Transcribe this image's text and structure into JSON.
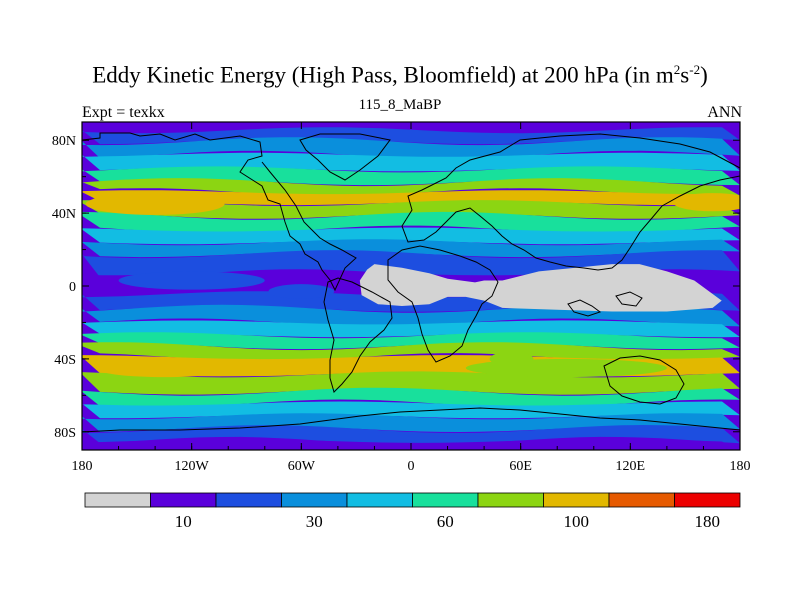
{
  "chart_data": {
    "type": "contour-map",
    "title": "Eddy Kinetic Energy (High Pass, Bloomfield) at 200 hPa (in m",
    "title_units_sup1": "2",
    "title_units_mid": "s",
    "title_units_sup2": "-2",
    "title_units_end": ")",
    "subtitle": "115_8_MaBP",
    "left_string": "Expt = texkx",
    "right_string": "ANN",
    "x_ticks": [
      {
        "value": -180,
        "label": "180"
      },
      {
        "value": -120,
        "label": "120W"
      },
      {
        "value": -60,
        "label": "60W"
      },
      {
        "value": 0,
        "label": "0"
      },
      {
        "value": 60,
        "label": "60E"
      },
      {
        "value": 120,
        "label": "120E"
      },
      {
        "value": 180,
        "label": "180"
      }
    ],
    "y_ticks": [
      {
        "value": 80,
        "label": "80N"
      },
      {
        "value": 40,
        "label": "40N"
      },
      {
        "value": 0,
        "label": "0"
      },
      {
        "value": -40,
        "label": "40S"
      },
      {
        "value": -80,
        "label": "80S"
      }
    ],
    "xlim": [
      -180,
      180
    ],
    "ylim": [
      -90,
      90
    ],
    "colorbar": {
      "colors": [
        "#d3d3d3",
        "#5a00db",
        "#1d4ee0",
        "#0a8fdc",
        "#12bde3",
        "#18e09c",
        "#8cd512",
        "#e2b800",
        "#e65a00",
        "#ec0000"
      ],
      "labels": [
        {
          "index": 1,
          "label": "10"
        },
        {
          "index": 3,
          "label": "30"
        },
        {
          "index": 5,
          "label": "60"
        },
        {
          "index": 7,
          "label": "100"
        },
        {
          "index": 9,
          "label": "180"
        }
      ]
    },
    "bands": [
      {
        "lat": 88,
        "level": 1
      },
      {
        "lat": 83,
        "level": 2
      },
      {
        "lat": 76,
        "level": 3
      },
      {
        "lat": 68,
        "level": 4
      },
      {
        "lat": 60,
        "level": 5
      },
      {
        "lat": 54,
        "level": 6
      },
      {
        "lat": 49,
        "level": 7
      },
      {
        "lat": 42,
        "level": 6
      },
      {
        "lat": 35,
        "level": 5
      },
      {
        "lat": 27,
        "level": 4
      },
      {
        "lat": 21,
        "level": 3
      },
      {
        "lat": 14,
        "level": 2
      },
      {
        "lat": 0,
        "level": 1
      },
      {
        "lat": -9,
        "level": 2
      },
      {
        "lat": -16,
        "level": 3
      },
      {
        "lat": -24,
        "level": 4
      },
      {
        "lat": -30,
        "level": 5
      },
      {
        "lat": -36,
        "level": 6
      },
      {
        "lat": -42,
        "level": 7
      },
      {
        "lat": -55,
        "level": 6
      },
      {
        "lat": -61,
        "level": 5
      },
      {
        "lat": -68,
        "level": 4
      },
      {
        "lat": -75,
        "level": 3
      },
      {
        "lat": -82,
        "level": 2
      },
      {
        "lat": -88,
        "level": 1
      }
    ],
    "low_region": [
      {
        "lon": -20,
        "lat": 12
      },
      {
        "lon": -5,
        "lat": 10
      },
      {
        "lon": 10,
        "lat": 7
      },
      {
        "lon": 20,
        "lat": 4
      },
      {
        "lon": 35,
        "lat": 2
      },
      {
        "lon": 40,
        "lat": 3
      },
      {
        "lon": 50,
        "lat": 3
      },
      {
        "lon": 70,
        "lat": 8
      },
      {
        "lon": 90,
        "lat": 10
      },
      {
        "lon": 110,
        "lat": 12
      },
      {
        "lon": 125,
        "lat": 12
      },
      {
        "lon": 140,
        "lat": 8
      },
      {
        "lon": 155,
        "lat": 3
      },
      {
        "lon": 170,
        "lat": -8
      },
      {
        "lon": 165,
        "lat": -12
      },
      {
        "lon": 140,
        "lat": -14
      },
      {
        "lon": 110,
        "lat": -14
      },
      {
        "lon": 80,
        "lat": -13
      },
      {
        "lon": 50,
        "lat": -12
      },
      {
        "lon": 40,
        "lat": -8
      },
      {
        "lon": 30,
        "lat": -6
      },
      {
        "lon": 20,
        "lat": -6
      },
      {
        "lon": 10,
        "lat": -10
      },
      {
        "lon": -5,
        "lat": -11
      },
      {
        "lon": -18,
        "lat": -10
      },
      {
        "lon": -27,
        "lat": -5
      },
      {
        "lon": -28,
        "lat": 3
      },
      {
        "lon": -24,
        "lat": 9
      }
    ],
    "high_spots": [
      {
        "lon": -140,
        "lat": 45,
        "rx": 38,
        "ry": 6,
        "level": 7
      },
      {
        "lon": 165,
        "lat": 46,
        "rx": 22,
        "ry": 5,
        "level": 7
      },
      {
        "lon": -135,
        "lat": -46,
        "rx": 35,
        "ry": 4,
        "level": 7
      },
      {
        "lon": -120,
        "lat": 3,
        "rx": 40,
        "ry": 5,
        "level": 2
      },
      {
        "lon": -60,
        "lat": -3,
        "rx": 18,
        "ry": 4,
        "level": 2
      },
      {
        "lon": 55,
        "lat": -40,
        "rx": 12,
        "ry": 4,
        "level": 6
      },
      {
        "lon": 85,
        "lat": -45,
        "rx": 55,
        "ry": 5,
        "level": 6
      }
    ]
  }
}
